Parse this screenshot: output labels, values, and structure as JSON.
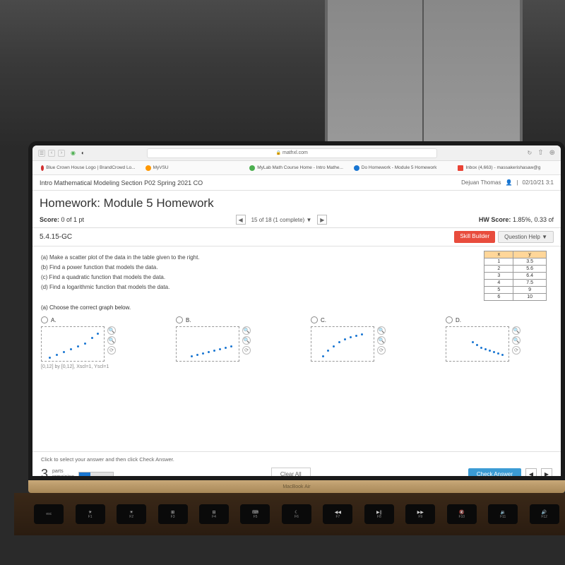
{
  "browser": {
    "url_display": "mathxl.com",
    "tabs": [
      {
        "label": "Blue Crown House Logo | BrandCrowd Lo..."
      },
      {
        "label": "MyVSU"
      },
      {
        "label": "MyLab Math Course Home - Intro Mathe..."
      },
      {
        "label": "Do Homework - Module 5 Homework"
      },
      {
        "label": "Inbox (4,663) - massakerishasaw@g"
      }
    ],
    "right_icons": [
      "⊕",
      "⇧"
    ]
  },
  "course": {
    "title": "Intro Mathematical Modeling Section P02 Spring 2021 CO",
    "user": "Dejuan Thomas",
    "datetime": "02/10/21 3:1"
  },
  "homework": {
    "title": "Homework: Module 5 Homework",
    "score_label": "Score:",
    "score_value": "0 of 1 pt",
    "pager_text": "15 of 18 (1 complete)",
    "hw_score_label": "HW Score:",
    "hw_score_value": "1.85%, 0.33 of",
    "question_id": "5.4.15-GC",
    "skill_builder": "Skill Builder",
    "question_help": "Question Help ▼"
  },
  "instructions": {
    "a": "(a) Make a scatter plot of the data in the table given to the right.",
    "b": "(b) Find a power function that models the data.",
    "c": "(c) Find a quadratic function that models the data.",
    "d": "(d) Find a logarithmic function that models the data."
  },
  "datatable": {
    "headers": [
      "x",
      "y"
    ],
    "rows": [
      [
        "1",
        "3.5"
      ],
      [
        "2",
        "5.6"
      ],
      [
        "3",
        "6.4"
      ],
      [
        "4",
        "7.5"
      ],
      [
        "5",
        "9"
      ],
      [
        "6",
        "10"
      ]
    ],
    "header_bg": "#ffd699",
    "border_color": "#999999"
  },
  "part_a_prompt": "(a) Choose the correct graph below.",
  "options": {
    "labels": [
      "A.",
      "B.",
      "C.",
      "D."
    ],
    "scatter_patterns": {
      "A": [
        [
          10,
          42
        ],
        [
          20,
          38
        ],
        [
          30,
          34
        ],
        [
          40,
          30
        ],
        [
          50,
          26
        ],
        [
          60,
          22
        ],
        [
          70,
          14
        ],
        [
          78,
          8
        ]
      ],
      "B": [
        [
          20,
          40
        ],
        [
          28,
          38
        ],
        [
          36,
          36
        ],
        [
          44,
          34
        ],
        [
          52,
          32
        ],
        [
          60,
          30
        ],
        [
          68,
          28
        ],
        [
          76,
          26
        ]
      ],
      "C": [
        [
          15,
          40
        ],
        [
          22,
          32
        ],
        [
          30,
          26
        ],
        [
          38,
          20
        ],
        [
          46,
          16
        ],
        [
          54,
          13
        ],
        [
          62,
          11
        ],
        [
          70,
          9
        ]
      ],
      "D": [
        [
          36,
          20
        ],
        [
          42,
          24
        ],
        [
          48,
          28
        ],
        [
          54,
          30
        ],
        [
          60,
          32
        ],
        [
          66,
          34
        ],
        [
          72,
          36
        ],
        [
          78,
          38
        ]
      ]
    }
  },
  "axis_note": "[0,12] by [0,12], Xscl=1, Yscl=1",
  "footer": {
    "hint": "Click to select your answer and then click Check Answer.",
    "parts_num": "3",
    "parts_text_top": "parts",
    "parts_text_bot": "remaining",
    "clear_all": "Clear All",
    "check_answer": "Check Answer",
    "progress_pct": 33
  },
  "laptop": {
    "hinge_text": "MacBook Air",
    "fn_keys": [
      "esc",
      "F1",
      "F2",
      "F3",
      "F4",
      "F5",
      "F6",
      "F7",
      "F8",
      "F9",
      "F10",
      "F11",
      "F12"
    ],
    "fn_icons": [
      "",
      "☀",
      "☀",
      "⊞",
      "⊟",
      "⌨",
      "☾",
      "◀◀",
      "▶||",
      "▶▶",
      "🔇",
      "🔉",
      "🔊"
    ]
  },
  "colors": {
    "skill_builder_bg": "#e84c3d",
    "check_btn_bg": "#3b9bd4",
    "progress_fill": "#1976d2",
    "scatter_dot": "#1976d2"
  }
}
